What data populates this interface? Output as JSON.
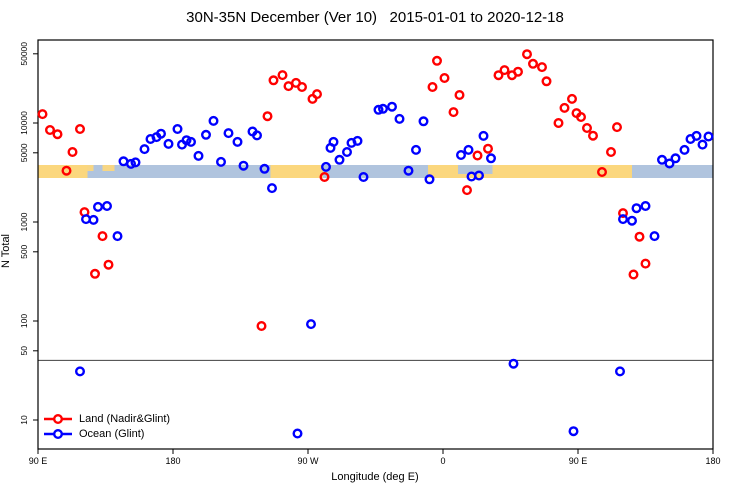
{
  "title": "30N-35N December (Ver 10)   2015-01-01 to 2020-12-18",
  "chart_data": {
    "type": "scatter",
    "title": "30N-35N December (Ver 10)   2015-01-01 to 2020-12-18",
    "xlabel": "Longitude (deg E)",
    "ylabel": "N Total",
    "yscale": "log",
    "x_axis": {
      "range_deg_continuous": [
        90,
        540
      ],
      "ticks": [
        {
          "deg": 90,
          "label": "90 E"
        },
        {
          "deg": 180,
          "label": "180"
        },
        {
          "deg": 270,
          "label": "90 W"
        },
        {
          "deg": 360,
          "label": "0"
        },
        {
          "deg": 450,
          "label": "90 E"
        },
        {
          "deg": 540,
          "label": "180"
        }
      ]
    },
    "y_axis": {
      "ticks": [
        10,
        50,
        100,
        500,
        1000,
        5000,
        10000,
        50000
      ],
      "range": [
        5,
        69000
      ]
    },
    "reference_line_value": 40,
    "band": {
      "ocean_color": "#b0c4de",
      "land_color": "#fbd77e",
      "value_center": 3600,
      "segments": [
        {
          "from": 90,
          "to": 123,
          "type": "land"
        },
        {
          "from": 123,
          "to": 245,
          "type": "ocean"
        },
        {
          "from": 245,
          "to": 280,
          "type": "land"
        },
        {
          "from": 280,
          "to": 350,
          "type": "ocean"
        },
        {
          "from": 350,
          "to": 486,
          "type": "land"
        },
        {
          "from": 486,
          "to": 540,
          "type": "ocean"
        }
      ],
      "patches": [
        {
          "from": 370,
          "to": 393,
          "type": "ocean",
          "partial": true
        },
        {
          "from": 133,
          "to": 141,
          "type": "land",
          "partial": true
        },
        {
          "from": 478,
          "to": 486,
          "type": "land",
          "partial": true
        },
        {
          "from": 121,
          "to": 127,
          "type": "land",
          "partial": true
        }
      ]
    },
    "series": [
      {
        "name": "Land (Nadir&Glint)",
        "color": "#ff0000",
        "points": [
          [
            93,
            12300
          ],
          [
            98,
            8500
          ],
          [
            103,
            7700
          ],
          [
            113,
            5100
          ],
          [
            118,
            8700
          ],
          [
            109,
            3300
          ],
          [
            121,
            1260
          ],
          [
            128,
            300
          ],
          [
            133,
            720
          ],
          [
            137,
            370
          ],
          [
            239,
            89
          ],
          [
            243,
            11700
          ],
          [
            247,
            27000
          ],
          [
            253,
            30500
          ],
          [
            257,
            23600
          ],
          [
            262,
            25400
          ],
          [
            266,
            23100
          ],
          [
            273,
            17500
          ],
          [
            276,
            19600
          ],
          [
            281,
            2850
          ],
          [
            353,
            23100
          ],
          [
            356,
            42500
          ],
          [
            361,
            28500
          ],
          [
            367,
            12900
          ],
          [
            371,
            19200
          ],
          [
            376,
            2100
          ],
          [
            383,
            4700
          ],
          [
            390,
            5500
          ],
          [
            397,
            30400
          ],
          [
            401,
            34200
          ],
          [
            406,
            30400
          ],
          [
            410,
            33000
          ],
          [
            416,
            49500
          ],
          [
            420,
            39600
          ],
          [
            426,
            36700
          ],
          [
            429,
            26400
          ],
          [
            437,
            10000
          ],
          [
            441,
            14200
          ],
          [
            446,
            17500
          ],
          [
            449,
            12600
          ],
          [
            452,
            11500
          ],
          [
            456,
            8900
          ],
          [
            460,
            7450
          ],
          [
            466,
            3200
          ],
          [
            472,
            5100
          ],
          [
            476,
            9100
          ],
          [
            480,
            1230
          ],
          [
            487,
            295
          ],
          [
            491,
            710
          ],
          [
            495,
            380
          ]
        ]
      },
      {
        "name": "Ocean (Glint)",
        "color": "#0000ff",
        "points": [
          [
            118,
            31
          ],
          [
            122,
            1070
          ],
          [
            127,
            1050
          ],
          [
            130,
            1420
          ],
          [
            136,
            1450
          ],
          [
            143,
            720
          ],
          [
            147,
            4100
          ],
          [
            152,
            3860
          ],
          [
            155,
            4000
          ],
          [
            161,
            5450
          ],
          [
            165,
            6900
          ],
          [
            169,
            7200
          ],
          [
            172,
            7800
          ],
          [
            177,
            6150
          ],
          [
            183,
            8700
          ],
          [
            186,
            6050
          ],
          [
            189,
            6700
          ],
          [
            192,
            6450
          ],
          [
            197,
            4650
          ],
          [
            202,
            7600
          ],
          [
            207,
            10500
          ],
          [
            212,
            4050
          ],
          [
            217,
            7900
          ],
          [
            223,
            6450
          ],
          [
            227,
            3700
          ],
          [
            233,
            8200
          ],
          [
            236,
            7500
          ],
          [
            241,
            3450
          ],
          [
            246,
            2200
          ],
          [
            263,
            7.3
          ],
          [
            272,
            93
          ],
          [
            282,
            3600
          ],
          [
            285,
            5600
          ],
          [
            287,
            6450
          ],
          [
            291,
            4250
          ],
          [
            296,
            5100
          ],
          [
            299,
            6300
          ],
          [
            303,
            6600
          ],
          [
            307,
            2850
          ],
          [
            317,
            13600
          ],
          [
            320,
            13900
          ],
          [
            326,
            14600
          ],
          [
            331,
            11000
          ],
          [
            337,
            3300
          ],
          [
            342,
            5350
          ],
          [
            347,
            10400
          ],
          [
            351,
            2700
          ],
          [
            372,
            4750
          ],
          [
            377,
            5350
          ],
          [
            379,
            2880
          ],
          [
            384,
            2950
          ],
          [
            387,
            7400
          ],
          [
            392,
            4400
          ],
          [
            407,
            37
          ],
          [
            447,
            7.7
          ],
          [
            478,
            31
          ],
          [
            480,
            1070
          ],
          [
            486,
            1030
          ],
          [
            489,
            1380
          ],
          [
            495,
            1450
          ],
          [
            501,
            720
          ],
          [
            506,
            4250
          ],
          [
            511,
            3900
          ],
          [
            515,
            4400
          ],
          [
            521,
            5350
          ],
          [
            525,
            6900
          ],
          [
            529,
            7400
          ],
          [
            533,
            6050
          ],
          [
            537,
            7300
          ]
        ]
      }
    ],
    "legend": {
      "position": "bottom-left",
      "items": [
        "Land (Nadir&Glint)",
        "Ocean (Glint)"
      ]
    }
  }
}
